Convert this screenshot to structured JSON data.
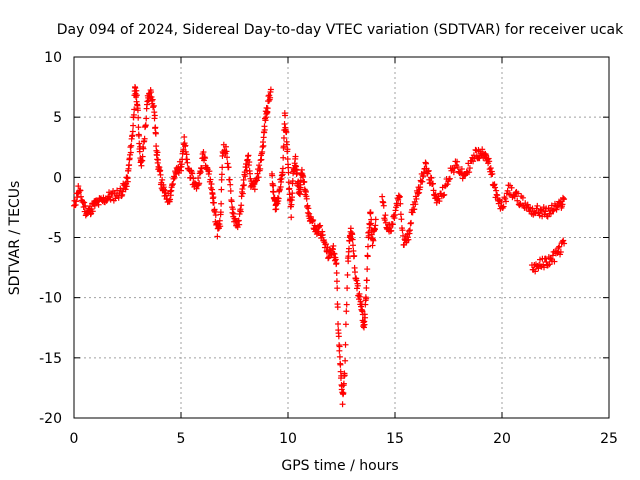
{
  "chart_data": {
    "type": "scatter",
    "title": "Day 094 of 2024, Sidereal Day-to-day VTEC variation (SDTVAR) for receiver ucak",
    "xlabel": "GPS time / hours",
    "ylabel": "SDTVAR / TECUs",
    "xlim": [
      0,
      25
    ],
    "ylim": [
      -20,
      10
    ],
    "xticks": [
      0,
      5,
      10,
      15,
      20,
      25
    ],
    "yticks": [
      -20,
      -15,
      -10,
      -5,
      0,
      5,
      10
    ],
    "xtick_labels": [
      "0",
      "5",
      "10",
      "15",
      "20",
      "25"
    ],
    "ytick_labels": [
      "-20",
      "-15",
      "-10",
      "-5",
      "0",
      "5",
      "10"
    ],
    "grid": true,
    "marker": "+",
    "color": "#ff0000",
    "series": [
      {
        "name": "ucak",
        "segments": [
          [
            [
              0.0,
              -2.5
            ],
            [
              0.2,
              -1.0
            ],
            [
              0.4,
              -2.0
            ],
            [
              0.6,
              -3.0
            ],
            [
              0.8,
              -2.6
            ],
            [
              1.0,
              -2.2
            ],
            [
              1.3,
              -2.0
            ],
            [
              1.6,
              -1.6
            ],
            [
              1.9,
              -1.5
            ],
            [
              2.2,
              -1.2
            ],
            [
              2.4,
              -0.7
            ],
            [
              2.5,
              -0.2
            ],
            [
              2.6,
              1.5
            ],
            [
              2.75,
              4.0
            ],
            [
              2.85,
              7.2
            ],
            [
              2.95,
              6.5
            ],
            [
              3.05,
              3.0
            ],
            [
              3.15,
              0.8
            ],
            [
              3.3,
              3.5
            ],
            [
              3.45,
              6.5
            ],
            [
              3.6,
              7.1
            ],
            [
              3.75,
              5.5
            ],
            [
              3.85,
              2.5
            ],
            [
              3.95,
              0.8
            ],
            [
              4.1,
              -0.5
            ],
            [
              4.25,
              -1.5
            ],
            [
              4.45,
              -1.8
            ],
            [
              4.6,
              -0.5
            ],
            [
              4.8,
              0.5
            ],
            [
              5.0,
              1.0
            ],
            [
              5.15,
              3.0
            ],
            [
              5.3,
              1.0
            ],
            [
              5.5,
              0.0
            ],
            [
              5.7,
              -0.8
            ],
            [
              5.9,
              0.2
            ],
            [
              6.05,
              2.0
            ],
            [
              6.25,
              0.8
            ],
            [
              6.45,
              -1.0
            ],
            [
              6.55,
              -2.5
            ],
            [
              6.7,
              -4.5
            ],
            [
              6.85,
              -3.5
            ],
            [
              6.95,
              2.5
            ],
            [
              7.15,
              2.0
            ],
            [
              7.35,
              -2.0
            ],
            [
              7.5,
              -3.5
            ],
            [
              7.7,
              -4.0
            ],
            [
              7.85,
              -1.5
            ],
            [
              8.0,
              0.5
            ],
            [
              8.15,
              1.5
            ],
            [
              8.3,
              -1.0
            ],
            [
              8.5,
              -0.5
            ],
            [
              8.7,
              1.0
            ],
            [
              8.85,
              3.0
            ],
            [
              8.95,
              5.0
            ],
            [
              9.05,
              6.0
            ],
            [
              9.2,
              7.3
            ]
          ],
          [
            [
              9.25,
              0.0
            ],
            [
              9.35,
              -1.8
            ],
            [
              9.45,
              -2.5
            ],
            [
              9.6,
              -1.0
            ],
            [
              9.75,
              0.5
            ],
            [
              9.85,
              5.0
            ],
            [
              9.95,
              3.0
            ],
            [
              10.05,
              -1.0
            ],
            [
              10.15,
              -3.0
            ],
            [
              10.25,
              0.5
            ],
            [
              10.35,
              1.5
            ],
            [
              10.45,
              -0.5
            ],
            [
              10.55,
              -1.5
            ],
            [
              10.65,
              0.8
            ],
            [
              10.8,
              -1.2
            ],
            [
              10.95,
              -3.0
            ],
            [
              11.1,
              -3.5
            ],
            [
              11.3,
              -4.5
            ],
            [
              11.5,
              -4.3
            ],
            [
              11.7,
              -5.5
            ],
            [
              11.9,
              -6.5
            ],
            [
              12.1,
              -6.0
            ],
            [
              12.25,
              -6.8
            ],
            [
              12.35,
              -12.5
            ],
            [
              12.45,
              -15.5
            ],
            [
              12.55,
              -18.5
            ],
            [
              12.65,
              -16.0
            ],
            [
              12.8,
              -7.0
            ],
            [
              12.9,
              -4.5
            ],
            [
              13.0,
              -5.0
            ],
            [
              13.15,
              -8.0
            ],
            [
              13.3,
              -9.8
            ],
            [
              13.45,
              -11.0
            ],
            [
              13.55,
              -12.5
            ],
            [
              13.65,
              -10.0
            ],
            [
              13.75,
              -5.0
            ],
            [
              13.85,
              -3.0
            ],
            [
              13.95,
              -5.5
            ],
            [
              14.1,
              -3.5
            ]
          ],
          [
            [
              14.4,
              -2.0
            ],
            [
              14.6,
              -4.0
            ],
            [
              14.8,
              -4.5
            ],
            [
              15.0,
              -3.0
            ],
            [
              15.2,
              -1.5
            ],
            [
              15.4,
              -5.5
            ],
            [
              15.6,
              -5.0
            ],
            [
              15.8,
              -3.0
            ],
            [
              16.0,
              -1.5
            ],
            [
              16.2,
              -0.5
            ],
            [
              16.4,
              1.0
            ],
            [
              16.6,
              0.0
            ],
            [
              16.8,
              -1.0
            ],
            [
              17.0,
              -2.0
            ],
            [
              17.3,
              -1.0
            ],
            [
              17.6,
              0.5
            ],
            [
              17.9,
              1.0
            ],
            [
              18.2,
              0.0
            ],
            [
              18.5,
              1.0
            ],
            [
              18.8,
              2.0
            ],
            [
              19.0,
              1.8
            ],
            [
              19.2,
              2.2
            ],
            [
              19.4,
              1.0
            ],
            [
              19.6,
              -0.5
            ],
            [
              19.8,
              -2.0
            ],
            [
              20.0,
              -2.5
            ],
            [
              20.3,
              -1.0
            ],
            [
              20.6,
              -1.5
            ],
            [
              20.9,
              -2.0
            ],
            [
              21.2,
              -2.5
            ],
            [
              21.5,
              -2.8
            ],
            [
              21.8,
              -2.8
            ],
            [
              22.1,
              -3.0
            ],
            [
              22.4,
              -2.6
            ],
            [
              22.7,
              -2.4
            ],
            [
              22.9,
              -1.8
            ]
          ],
          [
            [
              21.4,
              -7.5
            ],
            [
              21.7,
              -7.3
            ],
            [
              22.0,
              -7.1
            ],
            [
              22.3,
              -6.8
            ],
            [
              22.6,
              -6.3
            ],
            [
              22.9,
              -5.5
            ]
          ]
        ]
      }
    ]
  }
}
